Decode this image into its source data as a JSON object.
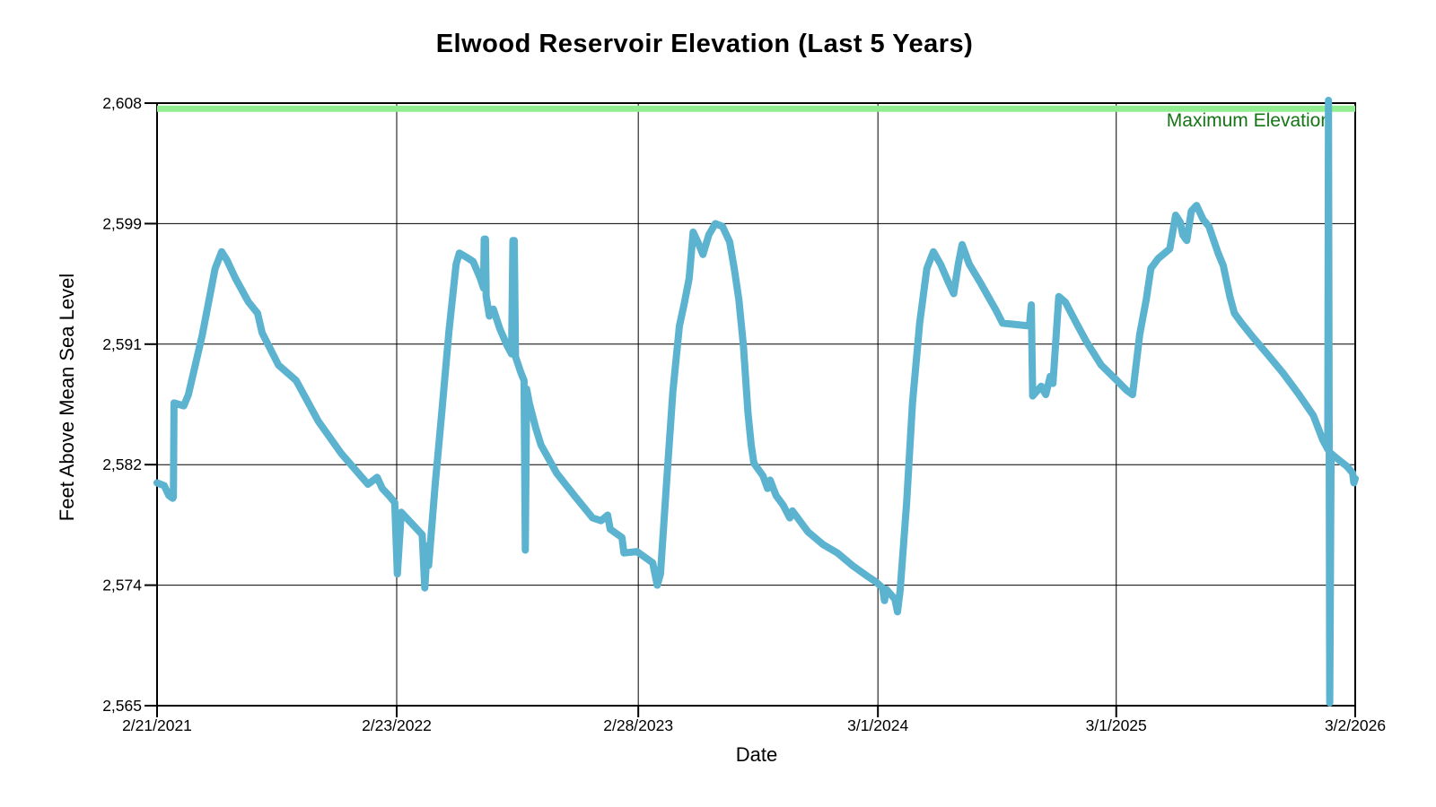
{
  "chart_data": {
    "type": "line",
    "title": "Elwood Reservoir Elevation (Last 5 Years)",
    "xlabel": "Date",
    "ylabel": "Feet Above Mean Sea Level",
    "grid": true,
    "legend": "none",
    "x_domain_days": [
      0,
      1835
    ],
    "y_range": [
      2565,
      2608
    ],
    "x_ticks": [
      {
        "d": 0,
        "label": "2/21/2021"
      },
      {
        "d": 367,
        "label": "2/23/2022"
      },
      {
        "d": 737,
        "label": "2/28/2023"
      },
      {
        "d": 1104,
        "label": "3/1/2024"
      },
      {
        "d": 1469,
        "label": "3/1/2025"
      },
      {
        "d": 1835,
        "label": "3/2/2026"
      }
    ],
    "y_ticks": [
      {
        "v": 2565,
        "label": "2,565"
      },
      {
        "v": 2573.6,
        "label": "2,574"
      },
      {
        "v": 2582.2,
        "label": "2,582"
      },
      {
        "v": 2590.8,
        "label": "2,591"
      },
      {
        "v": 2599.4,
        "label": "2,599"
      },
      {
        "v": 2608,
        "label": "2,608"
      }
    ],
    "reference_line": {
      "label": "Maximum Elevation",
      "value": 2607.6,
      "color": "#90EE90",
      "label_color": "#157515",
      "thickness": 7
    },
    "series": [
      {
        "color": "#5CB3D0",
        "width": 8,
        "points": [
          [
            0,
            2580.9
          ],
          [
            11,
            2580.7
          ],
          [
            18,
            2580.0
          ],
          [
            24,
            2579.8
          ],
          [
            25,
            2579.9
          ],
          [
            26,
            2586.6
          ],
          [
            41,
            2586.4
          ],
          [
            48,
            2587.2
          ],
          [
            69,
            2591.4
          ],
          [
            89,
            2596.2
          ],
          [
            99,
            2597.4
          ],
          [
            107,
            2596.8
          ],
          [
            120,
            2595.5
          ],
          [
            140,
            2593.8
          ],
          [
            154,
            2593.0
          ],
          [
            161,
            2591.6
          ],
          [
            186,
            2589.3
          ],
          [
            213,
            2588.2
          ],
          [
            247,
            2585.3
          ],
          [
            282,
            2583.0
          ],
          [
            323,
            2580.8
          ],
          [
            337,
            2581.3
          ],
          [
            345,
            2580.5
          ],
          [
            355,
            2580.0
          ],
          [
            364,
            2579.5
          ],
          [
            368,
            2574.4
          ],
          [
            374,
            2578.8
          ],
          [
            392,
            2577.9
          ],
          [
            406,
            2577.2
          ],
          [
            410,
            2573.4
          ],
          [
            414,
            2576.4
          ],
          [
            416,
            2575.0
          ],
          [
            426,
            2580.8
          ],
          [
            436,
            2585.9
          ],
          [
            447,
            2591.7
          ],
          [
            458,
            2596.5
          ],
          [
            463,
            2597.3
          ],
          [
            474,
            2597.0
          ],
          [
            484,
            2596.7
          ],
          [
            495,
            2595.5
          ],
          [
            500,
            2594.8
          ],
          [
            501,
            2598.3
          ],
          [
            503,
            2598.3
          ],
          [
            504,
            2594.2
          ],
          [
            509,
            2592.8
          ],
          [
            515,
            2593.3
          ],
          [
            525,
            2591.9
          ],
          [
            536,
            2590.7
          ],
          [
            543,
            2590.1
          ],
          [
            545,
            2598.2
          ],
          [
            547,
            2598.2
          ],
          [
            549,
            2589.9
          ],
          [
            557,
            2588.8
          ],
          [
            562,
            2588.2
          ],
          [
            564,
            2576.1
          ],
          [
            566,
            2587.6
          ],
          [
            570,
            2586.6
          ],
          [
            580,
            2584.8
          ],
          [
            588,
            2583.6
          ],
          [
            612,
            2581.6
          ],
          [
            639,
            2580.0
          ],
          [
            667,
            2578.4
          ],
          [
            680,
            2578.2
          ],
          [
            690,
            2578.6
          ],
          [
            694,
            2577.6
          ],
          [
            712,
            2577.0
          ],
          [
            715,
            2575.9
          ],
          [
            735,
            2576.0
          ],
          [
            759,
            2575.2
          ],
          [
            766,
            2573.6
          ],
          [
            771,
            2574.4
          ],
          [
            781,
            2581.4
          ],
          [
            790,
            2587.4
          ],
          [
            800,
            2592.1
          ],
          [
            807,
            2593.6
          ],
          [
            815,
            2595.5
          ],
          [
            821,
            2598.8
          ],
          [
            828,
            2598.1
          ],
          [
            836,
            2597.2
          ],
          [
            845,
            2598.6
          ],
          [
            855,
            2599.4
          ],
          [
            866,
            2599.2
          ],
          [
            877,
            2598.1
          ],
          [
            884,
            2596.2
          ],
          [
            891,
            2594.0
          ],
          [
            898,
            2590.7
          ],
          [
            905,
            2585.9
          ],
          [
            910,
            2583.6
          ],
          [
            914,
            2582.3
          ],
          [
            928,
            2581.4
          ],
          [
            935,
            2580.5
          ],
          [
            939,
            2581.1
          ],
          [
            948,
            2580.0
          ],
          [
            959,
            2579.3
          ],
          [
            969,
            2578.4
          ],
          [
            973,
            2578.9
          ],
          [
            997,
            2577.4
          ],
          [
            1020,
            2576.5
          ],
          [
            1042,
            2575.9
          ],
          [
            1065,
            2575.0
          ],
          [
            1089,
            2574.2
          ],
          [
            1102,
            2573.8
          ],
          [
            1111,
            2573.4
          ],
          [
            1114,
            2572.5
          ],
          [
            1117,
            2573.3
          ],
          [
            1130,
            2572.6
          ],
          [
            1134,
            2571.7
          ],
          [
            1138,
            2573.2
          ],
          [
            1148,
            2579.5
          ],
          [
            1157,
            2586.6
          ],
          [
            1168,
            2592.3
          ],
          [
            1179,
            2596.2
          ],
          [
            1189,
            2597.4
          ],
          [
            1200,
            2596.5
          ],
          [
            1212,
            2595.2
          ],
          [
            1220,
            2594.4
          ],
          [
            1227,
            2596.5
          ],
          [
            1233,
            2597.9
          ],
          [
            1244,
            2596.5
          ],
          [
            1262,
            2595.1
          ],
          [
            1285,
            2593.2
          ],
          [
            1295,
            2592.3
          ],
          [
            1336,
            2592.1
          ],
          [
            1339,
            2593.6
          ],
          [
            1341,
            2587.1
          ],
          [
            1354,
            2587.8
          ],
          [
            1361,
            2587.2
          ],
          [
            1368,
            2588.5
          ],
          [
            1372,
            2588.0
          ],
          [
            1381,
            2594.2
          ],
          [
            1391,
            2593.8
          ],
          [
            1409,
            2592.2
          ],
          [
            1423,
            2591.0
          ],
          [
            1446,
            2589.3
          ],
          [
            1468,
            2588.3
          ],
          [
            1485,
            2587.5
          ],
          [
            1494,
            2587.2
          ],
          [
            1505,
            2591.5
          ],
          [
            1515,
            2594.0
          ],
          [
            1522,
            2596.2
          ],
          [
            1533,
            2596.9
          ],
          [
            1551,
            2597.6
          ],
          [
            1560,
            2600.0
          ],
          [
            1567,
            2599.5
          ],
          [
            1571,
            2598.6
          ],
          [
            1577,
            2598.2
          ],
          [
            1584,
            2600.3
          ],
          [
            1592,
            2600.7
          ],
          [
            1602,
            2599.7
          ],
          [
            1611,
            2599.2
          ],
          [
            1625,
            2597.3
          ],
          [
            1633,
            2596.4
          ],
          [
            1643,
            2594.2
          ],
          [
            1650,
            2593.0
          ],
          [
            1661,
            2592.3
          ],
          [
            1680,
            2591.2
          ],
          [
            1702,
            2590.0
          ],
          [
            1725,
            2588.7
          ],
          [
            1749,
            2587.2
          ],
          [
            1771,
            2585.7
          ],
          [
            1785,
            2584.0
          ],
          [
            1793,
            2583.3
          ],
          [
            1794,
            2608.2
          ],
          [
            1796,
            2565.2
          ],
          [
            1798,
            2583.0
          ],
          [
            1808,
            2582.6
          ],
          [
            1822,
            2582.1
          ],
          [
            1831,
            2581.6
          ],
          [
            1833,
            2580.9
          ],
          [
            1835,
            2581.2
          ]
        ]
      }
    ]
  }
}
